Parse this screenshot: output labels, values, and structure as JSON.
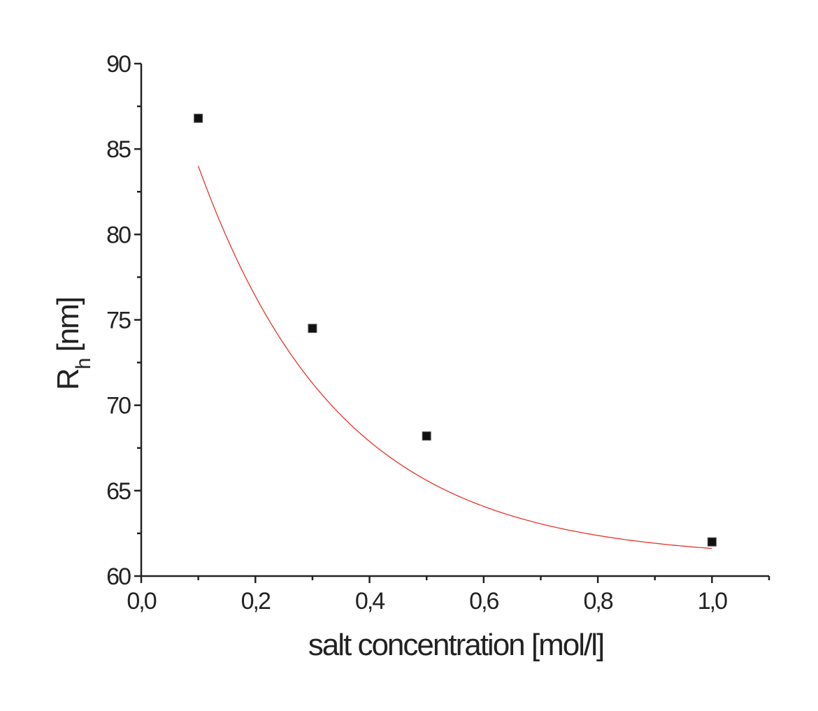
{
  "chart_data": {
    "type": "scatter",
    "title": "",
    "xlabel": "salt concentration [mol/l]",
    "ylabel": {
      "main": "R",
      "sub": "h",
      "unit": " [nm]"
    },
    "xlim": [
      0.0,
      1.1
    ],
    "ylim": [
      60,
      90
    ],
    "xticks": [
      "0,0",
      "0,2",
      "0,4",
      "0,6",
      "0,8",
      "1,0"
    ],
    "yticks": [
      "60",
      "65",
      "70",
      "75",
      "80",
      "85",
      "90"
    ],
    "grid": false,
    "legend": "none",
    "series": [
      {
        "marker": "square",
        "color": "#111111",
        "x": [
          0.1,
          0.3,
          0.5,
          1.0
        ],
        "y": [
          86.8,
          74.5,
          68.2,
          62.0
        ]
      }
    ],
    "fit": {
      "kind": "exponential-decay",
      "color": "#e8342a",
      "y0": 61.0,
      "A": 34.4,
      "t": 0.2486
    }
  }
}
